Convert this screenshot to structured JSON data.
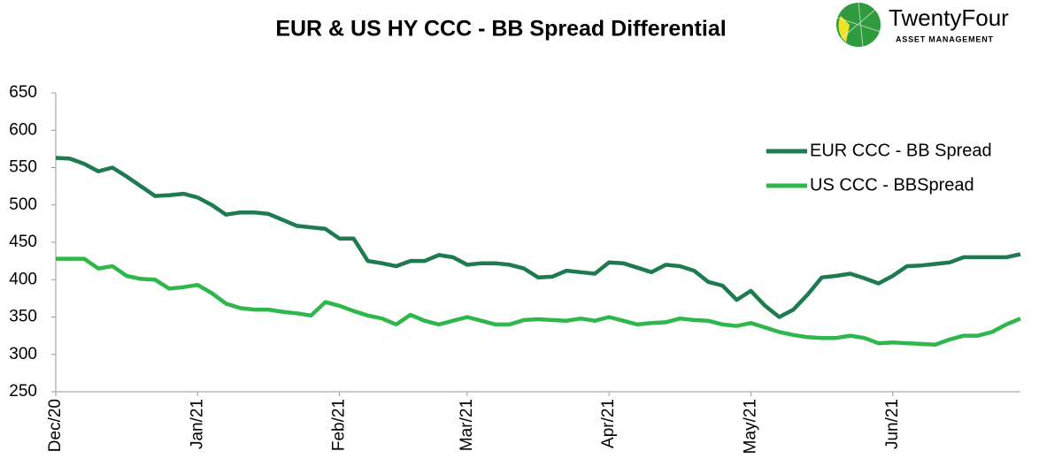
{
  "chart_data": {
    "type": "line",
    "title": "EUR & US HY CCC - BB Spread Differential",
    "logo": {
      "name": "TwentyFour",
      "tagline": "ASSET MANAGEMENT"
    },
    "categories": [
      "Dec/20",
      null,
      null,
      null,
      null,
      null,
      null,
      null,
      null,
      null,
      "Jan/21",
      null,
      null,
      null,
      null,
      null,
      null,
      null,
      null,
      null,
      "Feb/21",
      null,
      null,
      null,
      null,
      null,
      null,
      null,
      null,
      "Mar/21",
      null,
      null,
      null,
      null,
      null,
      null,
      null,
      null,
      null,
      "Apr/21",
      null,
      null,
      null,
      null,
      null,
      null,
      null,
      null,
      null,
      "May/21",
      null,
      null,
      null,
      null,
      null,
      null,
      null,
      null,
      null,
      "Jun/21",
      null,
      null,
      null,
      null,
      null,
      null,
      null,
      null,
      null
    ],
    "series": [
      {
        "name": "EUR CCC - BB Spread",
        "color": "#1e7b4f",
        "values": [
          563,
          562,
          555,
          545,
          550,
          538,
          525,
          512,
          513,
          515,
          510,
          500,
          487,
          490,
          490,
          488,
          480,
          472,
          470,
          468,
          455,
          455,
          425,
          422,
          418,
          425,
          425,
          433,
          430,
          420,
          422,
          422,
          420,
          415,
          403,
          404,
          412,
          410,
          408,
          423,
          422,
          416,
          410,
          420,
          418,
          412,
          397,
          392,
          373,
          385,
          365,
          350,
          360,
          380,
          403,
          405,
          408,
          402,
          395,
          405,
          418,
          419,
          421,
          423,
          430,
          430,
          430,
          430,
          434
        ]
      },
      {
        "name": "US CCC - BBSpread",
        "color": "#2eb84b",
        "values": [
          428,
          428,
          428,
          415,
          418,
          405,
          401,
          400,
          388,
          390,
          393,
          382,
          368,
          362,
          360,
          360,
          357,
          355,
          352,
          370,
          365,
          358,
          352,
          348,
          340,
          353,
          345,
          340,
          345,
          350,
          345,
          340,
          340,
          346,
          347,
          346,
          345,
          348,
          345,
          350,
          345,
          340,
          342,
          343,
          348,
          346,
          345,
          340,
          338,
          342,
          336,
          330,
          326,
          323,
          322,
          322,
          325,
          322,
          315,
          316,
          315,
          314,
          313,
          320,
          325,
          325,
          330,
          340,
          348
        ]
      }
    ],
    "ylim": [
      250,
      650
    ],
    "yticks": [
      250,
      300,
      350,
      400,
      450,
      500,
      550,
      600,
      650
    ],
    "grid": false,
    "legend": "upper-right"
  }
}
